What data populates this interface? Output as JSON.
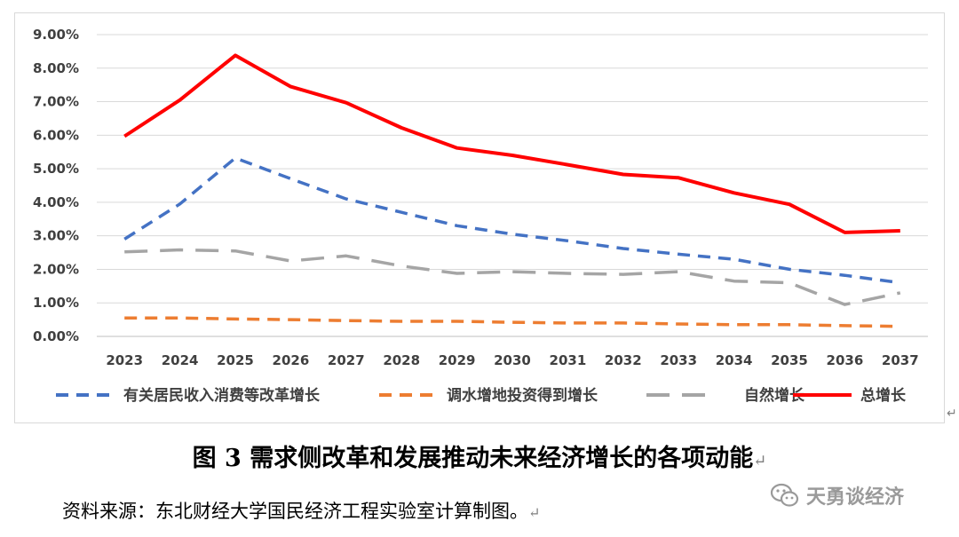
{
  "chart_data": {
    "type": "line",
    "title": "",
    "xlabel": "",
    "ylabel": "",
    "categories": [
      "2023",
      "2024",
      "2025",
      "2026",
      "2027",
      "2028",
      "2029",
      "2030",
      "2031",
      "2032",
      "2033",
      "2034",
      "2035",
      "2036",
      "2037"
    ],
    "ylim": [
      0,
      9
    ],
    "yticks": [
      0,
      1,
      2,
      3,
      4,
      5,
      6,
      7,
      8,
      9
    ],
    "ytick_labels": [
      "0.00%",
      "1.00%",
      "2.00%",
      "3.00%",
      "4.00%",
      "5.00%",
      "6.00%",
      "7.00%",
      "8.00%",
      "9.00%"
    ],
    "grid": true,
    "legend_position": "bottom",
    "series": [
      {
        "name": "有关居民收入消费等改革增长",
        "color": "#4472C4",
        "dash": "dash",
        "values": [
          2.9,
          3.95,
          5.32,
          4.7,
          4.1,
          3.7,
          3.3,
          3.05,
          2.85,
          2.62,
          2.45,
          2.3,
          2.0,
          1.82,
          1.6
        ]
      },
      {
        "name": "调水增地投资得到增长",
        "color": "#ED7D31",
        "dash": "dash",
        "values": [
          0.55,
          0.55,
          0.52,
          0.5,
          0.47,
          0.45,
          0.45,
          0.42,
          0.4,
          0.4,
          0.37,
          0.35,
          0.35,
          0.32,
          0.3
        ]
      },
      {
        "name": "自然增长",
        "color": "#A5A5A5",
        "dash": "longdash",
        "values": [
          2.52,
          2.58,
          2.55,
          2.25,
          2.4,
          2.1,
          1.88,
          1.93,
          1.88,
          1.85,
          1.93,
          1.65,
          1.6,
          0.95,
          1.3
        ]
      },
      {
        "name": "总增长",
        "color": "#FF0000",
        "dash": "solid",
        "values": [
          5.97,
          7.05,
          8.38,
          7.45,
          6.97,
          6.22,
          5.62,
          5.4,
          5.12,
          4.83,
          4.73,
          4.28,
          3.94,
          3.1,
          3.15
        ]
      }
    ]
  },
  "caption": {
    "text": "图 3  需求侧改革和发展推动未来经济增长的各项动能",
    "return_mark": "↵"
  },
  "source": {
    "text": "资料来源：东北财经大学国民经济工程实验室计算制图。",
    "return_mark": "↵"
  },
  "chart_return_mark": "↵",
  "watermark": {
    "text": "天勇谈经济",
    "icon": "wechat-icon"
  }
}
